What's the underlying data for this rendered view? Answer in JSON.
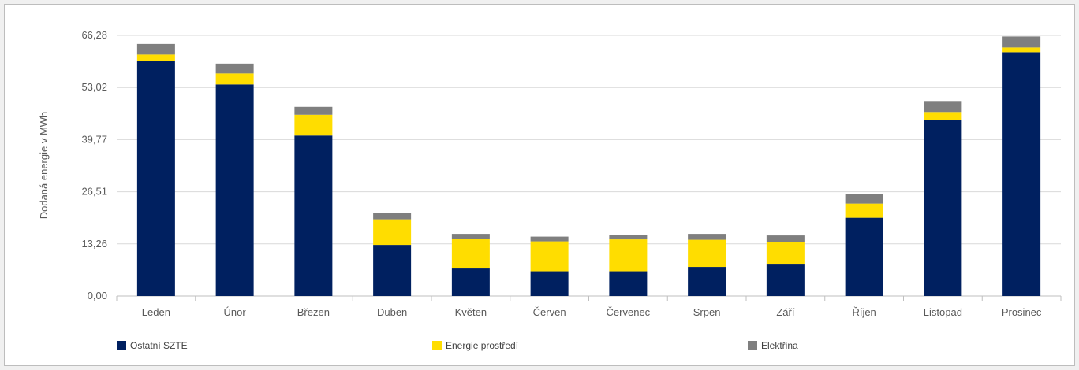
{
  "chart_data": {
    "type": "bar",
    "stacked": true,
    "ylabel": "Dodaná energie v MWh",
    "xlabel": "",
    "ylim": [
      0,
      66.28
    ],
    "yticks": [
      "0,00",
      "13,26",
      "26,51",
      "39,77",
      "53,02",
      "66,28"
    ],
    "categories": [
      "Leden",
      "Únor",
      "Březen",
      "Duben",
      "Květen",
      "Červen",
      "Červenec",
      "Srpen",
      "Září",
      "Říjen",
      "Listopad",
      "Prosinec"
    ],
    "series": [
      {
        "name": "Ostatní SZTE",
        "color": "#002060",
        "values": [
          59.8,
          53.8,
          40.8,
          13.0,
          7.0,
          6.3,
          6.3,
          7.4,
          8.2,
          19.9,
          44.8,
          62.0
        ]
      },
      {
        "name": "Energie prostředí",
        "color": "#ffdd00",
        "values": [
          1.6,
          2.8,
          5.3,
          6.5,
          7.6,
          7.6,
          8.1,
          6.9,
          5.6,
          3.6,
          2.0,
          1.2
        ]
      },
      {
        "name": "Elektřina",
        "color": "#7f7f7f",
        "values": [
          2.7,
          2.5,
          2.0,
          1.6,
          1.2,
          1.2,
          1.2,
          1.5,
          1.6,
          2.4,
          2.8,
          2.8
        ]
      }
    ],
    "grid": true,
    "legend_position": "bottom"
  }
}
